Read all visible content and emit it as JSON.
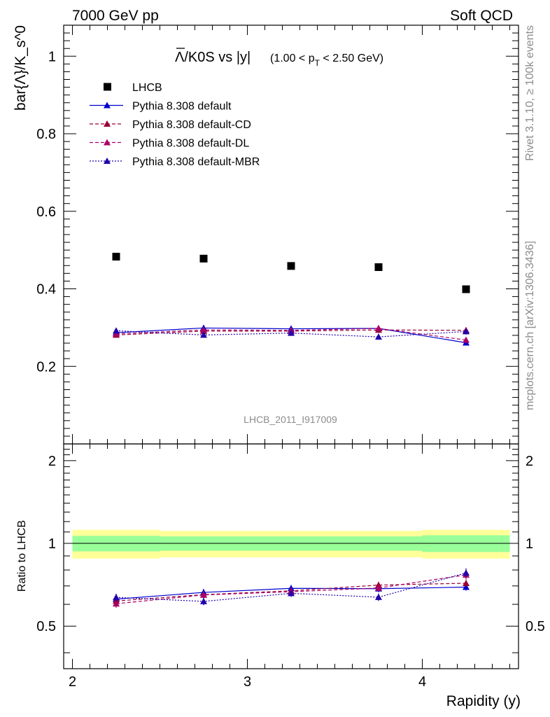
{
  "header": {
    "left": "7000 GeV pp",
    "right": "Soft QCD"
  },
  "plot_title": {
    "main": "Λ/K0S vs |y|",
    "sub_prefix": "(1.00 < p",
    "sub_subscript": "T",
    "sub_suffix": " < 2.50 GeV)"
  },
  "watermark": "LHCB_2011_I917009",
  "side_text": {
    "upper": "Rivet 3.1.10, ≥ 100k events",
    "lower": "mcplots.cern.ch [arXiv:1306.3436]"
  },
  "colors": {
    "data": "#000000",
    "default": "#0000cc",
    "cd": "#990033",
    "dl": "#aa0066",
    "mbr": "#2200aa",
    "band_inner": "#99ff99",
    "band_outer": "#ffff99"
  },
  "chart_data": [
    {
      "type": "scatter",
      "title": "",
      "ylabel": "bar{Λ}/K_s^0",
      "xlim": [
        1.95,
        4.55
      ],
      "ylim": [
        0.0,
        1.08
      ],
      "y_ticks": [
        "0.2",
        "0.4",
        "0.6",
        "0.8",
        "1"
      ],
      "x": [
        2.25,
        2.75,
        3.25,
        3.75,
        4.25
      ],
      "legend": {
        "position": "top-left",
        "entries": [
          "LHCB",
          "Pythia 8.308 default",
          "Pythia 8.308 default-CD",
          "Pythia 8.308 default-DL",
          "Pythia 8.308 default-MBR"
        ]
      },
      "series": [
        {
          "name": "LHCB",
          "style": "marker-square",
          "values": [
            0.483,
            0.478,
            0.459,
            0.456,
            0.399
          ]
        },
        {
          "name": "Pythia 8.308 default",
          "style": "solid",
          "values": [
            0.287,
            0.299,
            0.297,
            0.298,
            0.261
          ],
          "err": [
            0.007,
            0.007,
            0.007,
            0.007,
            0.007
          ]
        },
        {
          "name": "Pythia 8.308 default-CD",
          "style": "dashed",
          "values": [
            0.281,
            0.291,
            0.291,
            0.294,
            0.293
          ],
          "err": [
            0.007,
            0.007,
            0.007,
            0.008,
            0.008
          ]
        },
        {
          "name": "Pythia 8.308 default-DL",
          "style": "dashed",
          "values": [
            0.284,
            0.294,
            0.293,
            0.298,
            0.268
          ],
          "err": [
            0.007,
            0.007,
            0.007,
            0.008,
            0.007
          ]
        },
        {
          "name": "Pythia 8.308 default-MBR",
          "style": "dotted",
          "values": [
            0.292,
            0.281,
            0.286,
            0.276,
            0.29
          ],
          "err": [
            0.007,
            0.007,
            0.007,
            0.007,
            0.008
          ]
        }
      ]
    },
    {
      "type": "line",
      "title": "",
      "xlabel": "Rapidity (y)",
      "ylabel": "Ratio to LHCB",
      "xlim": [
        1.95,
        4.55
      ],
      "ylim": [
        0.35,
        2.3
      ],
      "x_ticks": [
        "2",
        "3",
        "4"
      ],
      "y_ticks": [
        "0.5",
        "1",
        "2"
      ],
      "y_scale": "log",
      "x": [
        2.25,
        2.75,
        3.25,
        3.75,
        4.25
      ],
      "bins": [
        [
          2.0,
          2.5
        ],
        [
          2.5,
          3.0
        ],
        [
          3.0,
          3.5
        ],
        [
          3.5,
          4.0
        ],
        [
          4.0,
          4.5
        ]
      ],
      "band_inner": [
        0.065,
        0.06,
        0.06,
        0.06,
        0.07
      ],
      "band_outer": [
        0.12,
        0.11,
        0.11,
        0.11,
        0.12
      ],
      "series": [
        {
          "name": "Pythia 8.308 default",
          "style": "solid",
          "values": [
            0.627,
            0.663,
            0.686,
            0.684,
            0.693
          ],
          "err": [
            0.02,
            0.02,
            0.02,
            0.02,
            0.02
          ]
        },
        {
          "name": "Pythia 8.308 default-CD",
          "style": "dashed",
          "values": [
            0.617,
            0.651,
            0.672,
            0.705,
            0.716
          ],
          "err": [
            0.02,
            0.02,
            0.02,
            0.02,
            0.02
          ]
        },
        {
          "name": "Pythia 8.308 default-DL",
          "style": "dashed",
          "values": [
            0.603,
            0.649,
            0.667,
            0.688,
            0.768
          ],
          "err": [
            0.02,
            0.02,
            0.02,
            0.02,
            0.03
          ]
        },
        {
          "name": "Pythia 8.308 default-MBR",
          "style": "dotted",
          "values": [
            0.636,
            0.615,
            0.658,
            0.637,
            0.781
          ],
          "err": [
            0.02,
            0.02,
            0.02,
            0.02,
            0.03
          ]
        }
      ]
    }
  ]
}
